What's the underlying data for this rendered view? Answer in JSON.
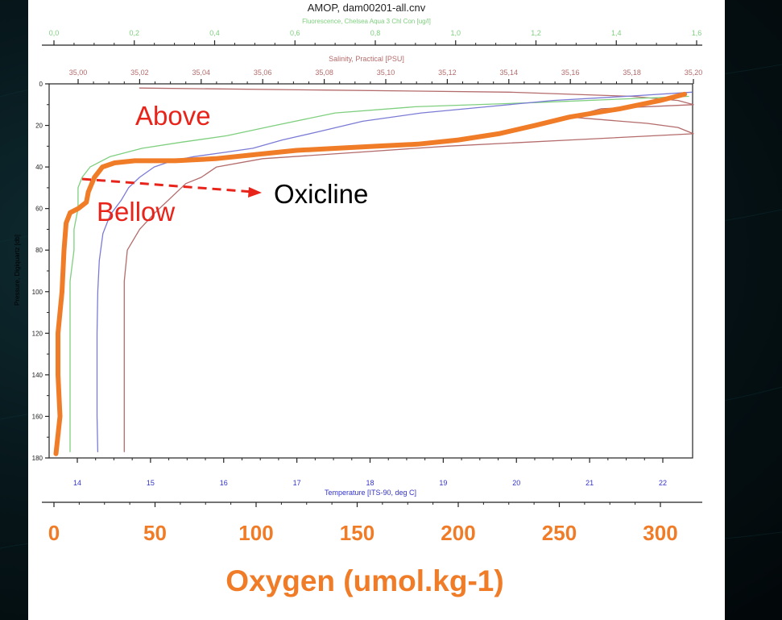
{
  "colors": {
    "background": "#06161a",
    "panel": "#ffffff",
    "oxygen": "#f07c28",
    "fluorescence": "#7ecf7e",
    "salinity": "#b46b6b",
    "temperature": "#7b7bd6",
    "axis": "#222222",
    "annotation": "#e8231a",
    "arrow": "#e8231a"
  },
  "chart_data": {
    "type": "line",
    "title": "AMOP, dam00201-all.cnv",
    "ylabel": "Pressure, Digiquartz [db]",
    "ylim": [
      0,
      180
    ],
    "y_ticks": [
      "0",
      "20",
      "40",
      "60",
      "80",
      "100",
      "120",
      "140",
      "160",
      "180"
    ],
    "axes": {
      "fluorescence": {
        "label": "Fluorescence, Chelsea Aqua 3 Chl Con [ug/l]",
        "range": [
          0.0,
          1.6
        ],
        "ticks": [
          "0,0",
          "0,2",
          "0,4",
          "0,6",
          "0,8",
          "1,0",
          "1,2",
          "1,4",
          "1,6"
        ]
      },
      "salinity": {
        "label": "Salinity, Practical [PSU]",
        "range": [
          34.98,
          35.2
        ],
        "ticks": [
          "35,00",
          "35,02",
          "35,04",
          "35,06",
          "35,08",
          "35,10",
          "35,12",
          "35,14",
          "35,16",
          "35,18",
          "35,20"
        ]
      },
      "temperature": {
        "label": "Temperature [ITS-90, deg C]",
        "range": [
          13.8,
          22.7
        ],
        "ticks": [
          "14",
          "15",
          "16",
          "17",
          "18",
          "19",
          "20",
          "21",
          "22"
        ]
      },
      "oxygen": {
        "label": "Oxygen (umol.kg-1)",
        "range": [
          0,
          320
        ],
        "ticks": [
          "0",
          "50",
          "100",
          "150",
          "200",
          "250",
          "300"
        ]
      }
    },
    "series": [
      {
        "key": "oxygen",
        "points": [
          [
            312,
            5
          ],
          [
            300,
            8
          ],
          [
            280,
            12
          ],
          [
            255,
            16
          ],
          [
            238,
            20
          ],
          [
            220,
            24
          ],
          [
            200,
            27
          ],
          [
            180,
            29
          ],
          [
            160,
            30
          ],
          [
            140,
            31
          ],
          [
            120,
            32
          ],
          [
            100,
            34
          ],
          [
            80,
            36
          ],
          [
            60,
            37
          ],
          [
            40,
            37
          ],
          [
            30,
            38
          ],
          [
            24,
            40
          ],
          [
            20,
            45
          ],
          [
            17,
            52
          ],
          [
            16,
            57
          ],
          [
            12,
            60
          ],
          [
            8,
            62
          ],
          [
            6,
            67
          ],
          [
            5,
            80
          ],
          [
            4,
            100
          ],
          [
            2,
            120
          ],
          [
            2,
            140
          ],
          [
            3,
            160
          ],
          [
            1,
            178
          ]
        ]
      },
      {
        "key": "temperature",
        "points": [
          [
            22.4,
            4
          ],
          [
            21.5,
            6
          ],
          [
            20.5,
            8
          ],
          [
            19.6,
            11
          ],
          [
            18.7,
            14
          ],
          [
            17.9,
            18
          ],
          [
            17.3,
            23
          ],
          [
            16.8,
            27
          ],
          [
            16.4,
            31
          ],
          [
            16.0,
            33
          ],
          [
            15.6,
            35
          ],
          [
            15.3,
            37
          ],
          [
            15.05,
            40
          ],
          [
            14.85,
            45
          ],
          [
            14.7,
            50
          ],
          [
            14.6,
            56
          ],
          [
            14.45,
            63
          ],
          [
            14.35,
            72
          ],
          [
            14.3,
            85
          ],
          [
            14.28,
            100
          ],
          [
            14.27,
            120
          ],
          [
            14.27,
            140
          ],
          [
            14.27,
            160
          ],
          [
            14.28,
            177
          ]
        ]
      },
      {
        "key": "fluorescence",
        "points": [
          [
            1.58,
            6
          ],
          [
            1.2,
            9
          ],
          [
            0.9,
            11
          ],
          [
            0.7,
            14
          ],
          [
            0.55,
            20
          ],
          [
            0.43,
            25
          ],
          [
            0.32,
            28
          ],
          [
            0.22,
            31
          ],
          [
            0.14,
            35
          ],
          [
            0.09,
            40
          ],
          [
            0.07,
            45
          ],
          [
            0.06,
            50
          ],
          [
            0.06,
            60
          ],
          [
            0.05,
            70
          ],
          [
            0.05,
            80
          ],
          [
            0.04,
            95
          ],
          [
            0.04,
            110
          ],
          [
            0.04,
            130
          ],
          [
            0.04,
            150
          ],
          [
            0.04,
            165
          ],
          [
            0.04,
            177
          ]
        ]
      },
      {
        "key": "salinity",
        "points": [
          [
            35.02,
            2
          ],
          [
            35.08,
            3
          ],
          [
            35.14,
            4
          ],
          [
            35.18,
            6
          ],
          [
            35.195,
            8
          ],
          [
            35.2,
            10
          ],
          [
            35.17,
            12
          ],
          [
            35.16,
            16
          ],
          [
            35.185,
            19
          ],
          [
            35.195,
            21
          ],
          [
            35.2,
            24
          ],
          [
            35.16,
            27
          ],
          [
            35.12,
            30
          ],
          [
            35.09,
            33
          ],
          [
            35.06,
            36
          ],
          [
            35.045,
            40
          ],
          [
            35.04,
            45
          ],
          [
            35.035,
            48
          ],
          [
            35.03,
            55
          ],
          [
            35.025,
            62
          ],
          [
            35.02,
            70
          ],
          [
            35.016,
            80
          ],
          [
            35.015,
            95
          ],
          [
            35.015,
            120
          ],
          [
            35.015,
            150
          ],
          [
            35.015,
            177
          ]
        ]
      }
    ],
    "annotations": {
      "above": "Above",
      "below": "Bellow",
      "oxicline": "Oxicline"
    }
  }
}
